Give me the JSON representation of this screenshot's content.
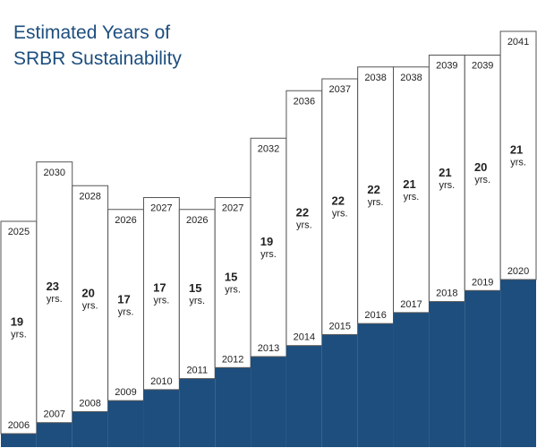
{
  "chart_data": {
    "type": "bar",
    "title_lines": [
      "Estimated Years of",
      "SRBR Sustainability"
    ],
    "unit_label": "yrs.",
    "fill_color": "#1d4e7e",
    "box_border_color": "#555555",
    "bars": [
      {
        "start": "2006",
        "end": "2025",
        "years": "19"
      },
      {
        "start": "2007",
        "end": "2030",
        "years": "23"
      },
      {
        "start": "2008",
        "end": "2028",
        "years": "20"
      },
      {
        "start": "2009",
        "end": "2026",
        "years": "17"
      },
      {
        "start": "2010",
        "end": "2027",
        "years": "17"
      },
      {
        "start": "2011",
        "end": "2026",
        "years": "15"
      },
      {
        "start": "2012",
        "end": "2027",
        "years": "15"
      },
      {
        "start": "2013",
        "end": "2032",
        "years": "19"
      },
      {
        "start": "2014",
        "end": "2036",
        "years": "22"
      },
      {
        "start": "2015",
        "end": "2037",
        "years": "22"
      },
      {
        "start": "2016",
        "end": "2038",
        "years": "22"
      },
      {
        "start": "2017",
        "end": "2038",
        "years": "21"
      },
      {
        "start": "2018",
        "end": "2039",
        "years": "21"
      },
      {
        "start": "2019",
        "end": "2039",
        "years": "20"
      },
      {
        "start": "2020",
        "end": "2041",
        "years": "21"
      }
    ]
  }
}
